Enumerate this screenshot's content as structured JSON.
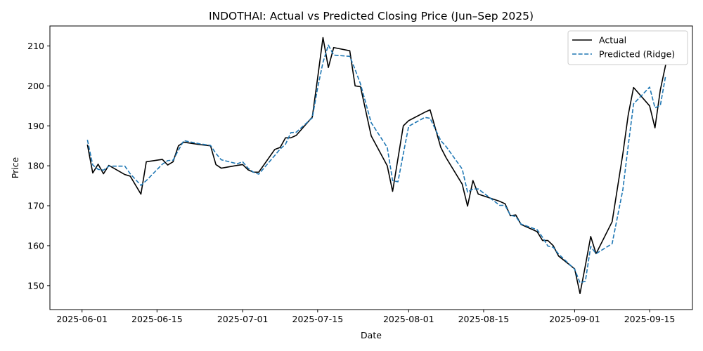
{
  "chart_data": {
    "type": "line",
    "title": "INDOTHAI: Actual vs Predicted Closing Price (Jun–Sep 2025)",
    "xlabel": "Date",
    "ylabel": "Price",
    "xlim": [
      "2025-05-26",
      "2025-09-23"
    ],
    "ylim": [
      144,
      215
    ],
    "x_ticks": [
      "2025-06-01",
      "2025-06-15",
      "2025-07-01",
      "2025-07-15",
      "2025-08-01",
      "2025-08-15",
      "2025-09-01",
      "2025-09-15"
    ],
    "y_ticks": [
      150,
      160,
      170,
      180,
      190,
      200,
      210
    ],
    "grid": false,
    "legend": "top-right",
    "series": [
      {
        "name": "Actual",
        "color": "#000000",
        "style": "solid",
        "points": [
          [
            "2025-06-02",
            185.3
          ],
          [
            "2025-06-03",
            178.2
          ],
          [
            "2025-06-04",
            180.4
          ],
          [
            "2025-06-05",
            178.0
          ],
          [
            "2025-06-06",
            180.1
          ],
          [
            "2025-06-09",
            177.8
          ],
          [
            "2025-06-10",
            177.4
          ],
          [
            "2025-06-12",
            172.9
          ],
          [
            "2025-06-13",
            181.0
          ],
          [
            "2025-06-16",
            181.6
          ],
          [
            "2025-06-17",
            180.2
          ],
          [
            "2025-06-18",
            181.0
          ],
          [
            "2025-06-19",
            185.0
          ],
          [
            "2025-06-20",
            185.9
          ],
          [
            "2025-06-23",
            185.3
          ],
          [
            "2025-06-25",
            185.0
          ],
          [
            "2025-06-26",
            180.3
          ],
          [
            "2025-06-27",
            179.4
          ],
          [
            "2025-06-30",
            180.1
          ],
          [
            "2025-07-01",
            180.3
          ],
          [
            "2025-07-02",
            179.0
          ],
          [
            "2025-07-03",
            178.4
          ],
          [
            "2025-07-04",
            178.4
          ],
          [
            "2025-07-07",
            184.1
          ],
          [
            "2025-07-08",
            184.6
          ],
          [
            "2025-07-09",
            187.0
          ],
          [
            "2025-07-10",
            187.0
          ],
          [
            "2025-07-11",
            187.6
          ],
          [
            "2025-07-14",
            192.2
          ],
          [
            "2025-07-15",
            202.0
          ],
          [
            "2025-07-16",
            212.1
          ],
          [
            "2025-07-17",
            204.6
          ],
          [
            "2025-07-18",
            209.6
          ],
          [
            "2025-07-21",
            208.8
          ],
          [
            "2025-07-22",
            200.0
          ],
          [
            "2025-07-23",
            199.8
          ],
          [
            "2025-07-25",
            187.5
          ],
          [
            "2025-07-28",
            180.0
          ],
          [
            "2025-07-29",
            173.6
          ],
          [
            "2025-07-31",
            190.0
          ],
          [
            "2025-08-01",
            191.3
          ],
          [
            "2025-08-04",
            193.4
          ],
          [
            "2025-08-05",
            194.0
          ],
          [
            "2025-08-07",
            184.6
          ],
          [
            "2025-08-08",
            182.0
          ],
          [
            "2025-08-11",
            175.4
          ],
          [
            "2025-08-12",
            169.9
          ],
          [
            "2025-08-13",
            176.3
          ],
          [
            "2025-08-14",
            172.9
          ],
          [
            "2025-08-18",
            171.1
          ],
          [
            "2025-08-19",
            170.5
          ],
          [
            "2025-08-20",
            167.5
          ],
          [
            "2025-08-21",
            167.7
          ],
          [
            "2025-08-22",
            165.3
          ],
          [
            "2025-08-25",
            163.5
          ],
          [
            "2025-08-26",
            161.3
          ],
          [
            "2025-08-27",
            161.3
          ],
          [
            "2025-08-28",
            160.0
          ],
          [
            "2025-08-29",
            157.4
          ],
          [
            "2025-09-01",
            154.2
          ],
          [
            "2025-09-02",
            148.0
          ],
          [
            "2025-09-03",
            155.0
          ],
          [
            "2025-09-04",
            162.3
          ],
          [
            "2025-09-05",
            158.0
          ],
          [
            "2025-09-08",
            166.0
          ],
          [
            "2025-09-10",
            183.0
          ],
          [
            "2025-09-11",
            192.7
          ],
          [
            "2025-09-12",
            199.6
          ],
          [
            "2025-09-15",
            195.0
          ],
          [
            "2025-09-16",
            189.5
          ],
          [
            "2025-09-17",
            199.0
          ],
          [
            "2025-09-18",
            205.3
          ]
        ]
      },
      {
        "name": "Predicted (Ridge)",
        "color": "#1f77b4",
        "style": "dashed",
        "points": [
          [
            "2025-06-02",
            186.5
          ],
          [
            "2025-06-03",
            180.2
          ],
          [
            "2025-06-04",
            179.1
          ],
          [
            "2025-06-05",
            178.9
          ],
          [
            "2025-06-06",
            179.9
          ],
          [
            "2025-06-09",
            179.9
          ],
          [
            "2025-06-10",
            178.0
          ],
          [
            "2025-06-12",
            175.1
          ],
          [
            "2025-06-13",
            176.3
          ],
          [
            "2025-06-16",
            180.4
          ],
          [
            "2025-06-17",
            181.3
          ],
          [
            "2025-06-18",
            181.4
          ],
          [
            "2025-06-19",
            183.9
          ],
          [
            "2025-06-20",
            186.3
          ],
          [
            "2025-06-23",
            185.5
          ],
          [
            "2025-06-25",
            185.1
          ],
          [
            "2025-06-26",
            183.1
          ],
          [
            "2025-06-27",
            181.5
          ],
          [
            "2025-06-30",
            180.5
          ],
          [
            "2025-07-01",
            181.0
          ],
          [
            "2025-07-02",
            179.4
          ],
          [
            "2025-07-03",
            178.4
          ],
          [
            "2025-07-04",
            177.9
          ],
          [
            "2025-07-07",
            182.6
          ],
          [
            "2025-07-08",
            184.2
          ],
          [
            "2025-07-09",
            185.4
          ],
          [
            "2025-07-10",
            188.3
          ],
          [
            "2025-07-11",
            188.4
          ],
          [
            "2025-07-14",
            192.0
          ],
          [
            "2025-07-15",
            199.5
          ],
          [
            "2025-07-16",
            205.9
          ],
          [
            "2025-07-17",
            210.2
          ],
          [
            "2025-07-18",
            207.7
          ],
          [
            "2025-07-21",
            207.4
          ],
          [
            "2025-07-22",
            204.1
          ],
          [
            "2025-07-23",
            200.5
          ],
          [
            "2025-07-25",
            190.8
          ],
          [
            "2025-07-28",
            184.6
          ],
          [
            "2025-07-29",
            176.3
          ],
          [
            "2025-07-30",
            176.0
          ],
          [
            "2025-07-31",
            183.0
          ],
          [
            "2025-08-01",
            189.9
          ],
          [
            "2025-08-04",
            192.1
          ],
          [
            "2025-08-05",
            191.9
          ],
          [
            "2025-08-07",
            186.3
          ],
          [
            "2025-08-08",
            184.8
          ],
          [
            "2025-08-11",
            179.2
          ],
          [
            "2025-08-12",
            173.4
          ],
          [
            "2025-08-13",
            174.2
          ],
          [
            "2025-08-14",
            174.2
          ],
          [
            "2025-08-18",
            170.1
          ],
          [
            "2025-08-19",
            170.1
          ],
          [
            "2025-08-20",
            167.6
          ],
          [
            "2025-08-21",
            167.3
          ],
          [
            "2025-08-22",
            165.4
          ],
          [
            "2025-08-25",
            164.0
          ],
          [
            "2025-08-26",
            162.1
          ],
          [
            "2025-08-27",
            159.9
          ],
          [
            "2025-08-28",
            159.6
          ],
          [
            "2025-08-29",
            157.9
          ],
          [
            "2025-09-01",
            154.1
          ],
          [
            "2025-09-02",
            150.7
          ],
          [
            "2025-09-03",
            151.1
          ],
          [
            "2025-09-04",
            159.8
          ],
          [
            "2025-09-05",
            158.0
          ],
          [
            "2025-09-08",
            160.5
          ],
          [
            "2025-09-10",
            174.0
          ],
          [
            "2025-09-11",
            185.0
          ],
          [
            "2025-09-12",
            195.5
          ],
          [
            "2025-09-15",
            199.7
          ],
          [
            "2025-09-16",
            194.5
          ],
          [
            "2025-09-17",
            195.1
          ],
          [
            "2025-09-18",
            202.6
          ]
        ]
      }
    ]
  }
}
